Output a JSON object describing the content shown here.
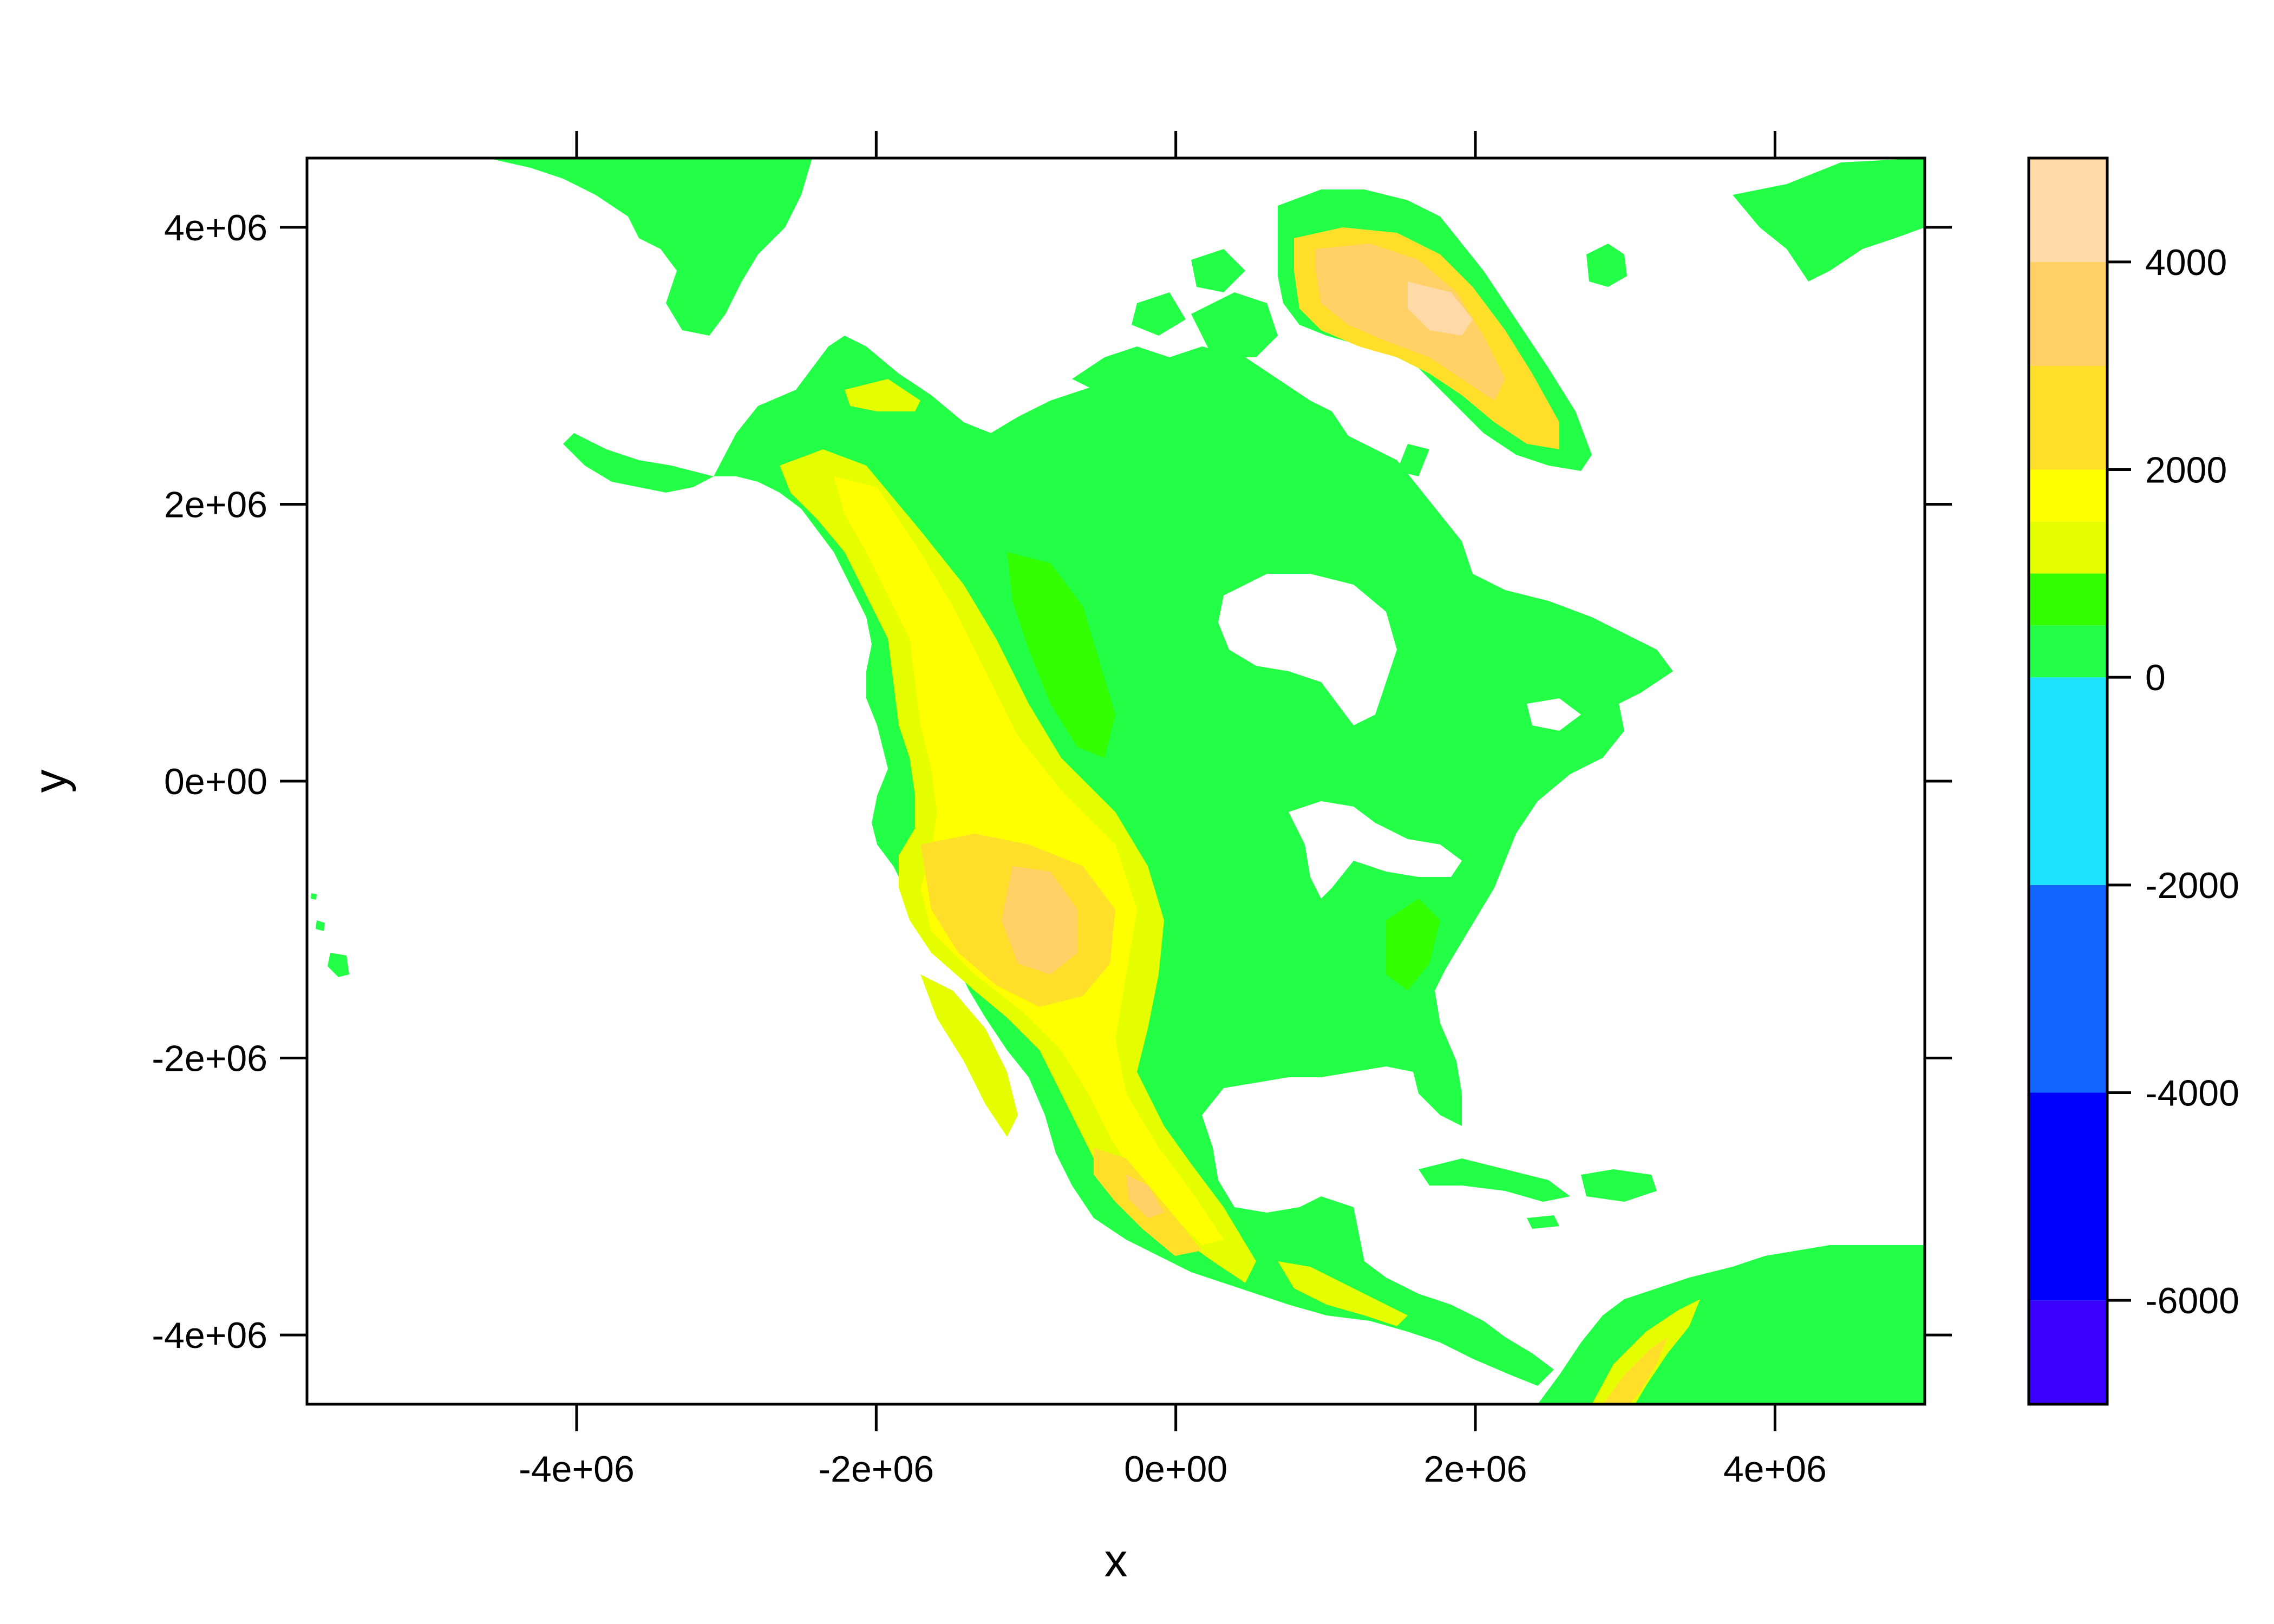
{
  "chart_data": {
    "type": "heatmap",
    "xlabel": "x",
    "ylabel": "y",
    "xlim": [
      -5800000,
      5000000
    ],
    "ylim": [
      -4500000,
      4500000
    ],
    "x_ticks": [
      -4000000,
      -2000000,
      0,
      2000000,
      4000000
    ],
    "x_tick_labels": [
      "-4e+06",
      "-2e+06",
      "0e+00",
      "2e+06",
      "4e+06"
    ],
    "y_ticks": [
      -4000000,
      -2000000,
      0,
      2000000,
      4000000
    ],
    "y_tick_labels": [
      "-4e+06",
      "-2e+06",
      "0e+00",
      "2e+06",
      "4e+06"
    ],
    "colorkey": {
      "range": [
        -7000,
        5000
      ],
      "ticks": [
        -6000,
        -4000,
        -2000,
        0,
        2000,
        4000
      ],
      "tick_labels": [
        "-6000",
        "-4000",
        "-2000",
        "0",
        "2000",
        "4000"
      ],
      "bands": [
        {
          "from": -7000,
          "to": -6000,
          "color": "#3b00ff"
        },
        {
          "from": -6000,
          "to": -4000,
          "color": "#0000ff"
        },
        {
          "from": -4000,
          "to": -2000,
          "color": "#1464ff"
        },
        {
          "from": -2000,
          "to": 0,
          "color": "#1ce2ff"
        },
        {
          "from": 0,
          "to": 500,
          "color": "#22ff46"
        },
        {
          "from": 500,
          "to": 1000,
          "color": "#33ff00"
        },
        {
          "from": 1000,
          "to": 1500,
          "color": "#e6ff00"
        },
        {
          "from": 1500,
          "to": 2000,
          "color": "#ffff00"
        },
        {
          "from": 2000,
          "to": 3000,
          "color": "#ffdf2a"
        },
        {
          "from": 3000,
          "to": 4000,
          "color": "#ffd066"
        },
        {
          "from": 4000,
          "to": 5000,
          "color": "#ffd9a6"
        }
      ]
    },
    "colors": {
      "lowland": "#22ff46",
      "plains": "#33ff00",
      "upland": "#e6ff00",
      "highland": "#ffff00",
      "mountain": "#ffdf2a",
      "peak": "#ffd066",
      "summit": "#ffd9a6",
      "shallow_sea": "#1ce2ff"
    }
  }
}
